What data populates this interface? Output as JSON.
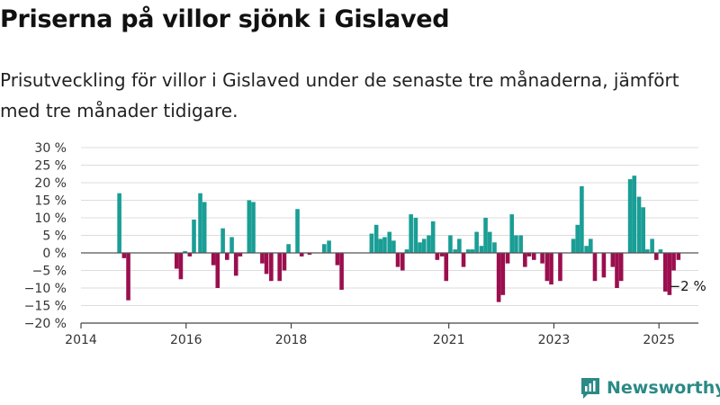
{
  "title": "Priserna på villor sjönk i Gislaved",
  "subtitle": "Prisutveckling för villor i Gislaved under de senaste tre månaderna, jämfört med tre månader tidigare.",
  "brand": "Newsworthy",
  "colors": {
    "positive": "#1a9e96",
    "negative": "#9b0f4e",
    "brand": "#2b8a86",
    "grid": "#dcdcdc",
    "axis": "#444444"
  },
  "chart_data": {
    "type": "bar",
    "title": "Priserna på villor sjönk i Gislaved",
    "xlabel": "",
    "ylabel": "",
    "ylim": [
      -20,
      30
    ],
    "xlim": [
      2014.0,
      2025.75
    ],
    "yticks": [
      "30 %",
      "25 %",
      "20 %",
      "15 %",
      "10 %",
      "5 %",
      "0 %",
      "−5 %",
      "−10 %",
      "−15 %",
      "−20 %"
    ],
    "ytick_values": [
      30,
      25,
      20,
      15,
      10,
      5,
      0,
      -5,
      -10,
      -15,
      -20
    ],
    "xticks": [
      "2014",
      "2016",
      "2018",
      "2021",
      "2023",
      "2025"
    ],
    "xtick_values": [
      2014.0,
      2016.0,
      2018.0,
      2021.0,
      2023.0,
      2025.0
    ],
    "annotation": {
      "text": "−2 %",
      "x": 2025.4,
      "y": -2
    },
    "grid": true,
    "series": [
      {
        "points": [
          [
            2014.73,
            17
          ],
          [
            2014.82,
            -1.5
          ],
          [
            2014.9,
            -13.5
          ],
          [
            2015.82,
            -4.5
          ],
          [
            2015.9,
            -7.5
          ],
          [
            2015.98,
            0.5
          ],
          [
            2016.07,
            -1
          ],
          [
            2016.15,
            9.5
          ],
          [
            2016.27,
            17
          ],
          [
            2016.35,
            14.5
          ],
          [
            2016.52,
            -3.5
          ],
          [
            2016.6,
            -10
          ],
          [
            2016.7,
            7
          ],
          [
            2016.78,
            -2
          ],
          [
            2016.87,
            4.5
          ],
          [
            2016.95,
            -6.5
          ],
          [
            2017.03,
            -1
          ],
          [
            2017.2,
            15
          ],
          [
            2017.28,
            14.5
          ],
          [
            2017.45,
            -3
          ],
          [
            2017.53,
            -6
          ],
          [
            2017.62,
            -8
          ],
          [
            2017.78,
            -8
          ],
          [
            2017.87,
            -5
          ],
          [
            2017.95,
            2.5
          ],
          [
            2018.12,
            12.5
          ],
          [
            2018.2,
            -1
          ],
          [
            2018.35,
            -0.5
          ],
          [
            2018.63,
            2.5
          ],
          [
            2018.72,
            3.5
          ],
          [
            2018.88,
            -3.5
          ],
          [
            2018.96,
            -10.5
          ],
          [
            2019.53,
            5.5
          ],
          [
            2019.62,
            8
          ],
          [
            2019.7,
            4
          ],
          [
            2019.78,
            4.5
          ],
          [
            2019.87,
            6
          ],
          [
            2019.95,
            3.5
          ],
          [
            2020.03,
            -4
          ],
          [
            2020.12,
            -5
          ],
          [
            2020.2,
            1
          ],
          [
            2020.28,
            11
          ],
          [
            2020.37,
            10
          ],
          [
            2020.45,
            3
          ],
          [
            2020.53,
            4
          ],
          [
            2020.62,
            5
          ],
          [
            2020.7,
            9
          ],
          [
            2020.78,
            -2
          ],
          [
            2020.87,
            -1
          ],
          [
            2020.95,
            -8
          ],
          [
            2021.03,
            5
          ],
          [
            2021.12,
            1
          ],
          [
            2021.2,
            4
          ],
          [
            2021.28,
            -4
          ],
          [
            2021.37,
            1
          ],
          [
            2021.45,
            1
          ],
          [
            2021.53,
            6
          ],
          [
            2021.62,
            2
          ],
          [
            2021.7,
            10
          ],
          [
            2021.78,
            6
          ],
          [
            2021.87,
            3
          ],
          [
            2021.95,
            -14
          ],
          [
            2022.03,
            -12
          ],
          [
            2022.12,
            -3
          ],
          [
            2022.2,
            11
          ],
          [
            2022.28,
            5
          ],
          [
            2022.37,
            5
          ],
          [
            2022.45,
            -4
          ],
          [
            2022.53,
            -1
          ],
          [
            2022.62,
            -2
          ],
          [
            2022.78,
            -3
          ],
          [
            2022.87,
            -8
          ],
          [
            2022.95,
            -9
          ],
          [
            2023.12,
            -8
          ],
          [
            2023.37,
            4
          ],
          [
            2023.45,
            8
          ],
          [
            2023.53,
            19
          ],
          [
            2023.62,
            2
          ],
          [
            2023.7,
            4
          ],
          [
            2023.78,
            -8
          ],
          [
            2023.95,
            -7
          ],
          [
            2024.12,
            -4
          ],
          [
            2024.2,
            -10
          ],
          [
            2024.28,
            -8
          ],
          [
            2024.45,
            21
          ],
          [
            2024.53,
            22
          ],
          [
            2024.62,
            16
          ],
          [
            2024.7,
            13
          ],
          [
            2024.78,
            1
          ],
          [
            2024.87,
            4
          ],
          [
            2024.95,
            -2
          ],
          [
            2025.03,
            1
          ],
          [
            2025.12,
            -11
          ],
          [
            2025.2,
            -12
          ],
          [
            2025.28,
            -5
          ],
          [
            2025.37,
            -2
          ]
        ]
      }
    ]
  }
}
